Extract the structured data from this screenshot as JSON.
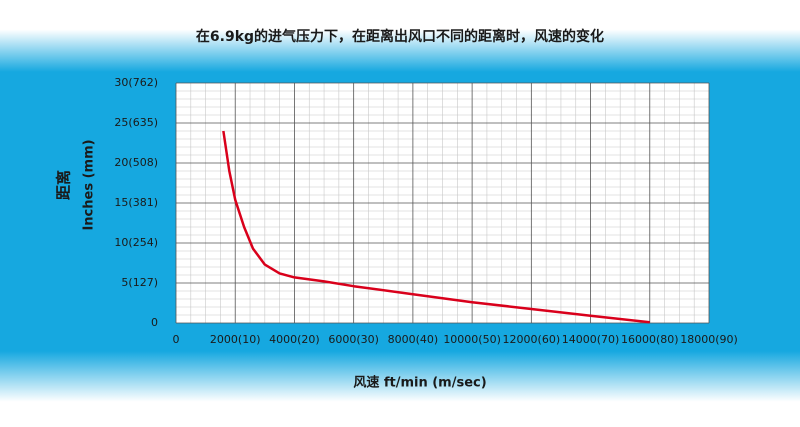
{
  "chart_data": {
    "type": "line",
    "title": "在6.9kg的进气压力下，在距离出风口不同的距离时，风速的变化",
    "y_label_cn": "距离",
    "y_label": "Inches (mm)",
    "x_label": "风速 ft/min (m/sec)",
    "x": [
      1600,
      1800,
      2000,
      2300,
      2600,
      3000,
      3500,
      4000,
      5000,
      6000,
      8000,
      10000,
      12000,
      14000,
      16000
    ],
    "series": [
      {
        "name": "风速",
        "color": "#d9001b",
        "values": [
          24,
          19,
          15.4,
          12,
          9.3,
          7.3,
          6.2,
          5.7,
          5.2,
          4.6,
          3.6,
          2.6,
          1.75,
          0.9,
          0.1
        ]
      }
    ],
    "xlim": [
      0,
      18000
    ],
    "xticks": [
      0,
      {
        "value": 2000,
        "label": "2000(10)"
      },
      {
        "value": 4000,
        "label": "4000(20)"
      },
      {
        "value": 6000,
        "label": "6000(30)"
      },
      {
        "value": 8000,
        "label": "8000(40)"
      },
      {
        "value": 10000,
        "label": "10000(50)"
      },
      {
        "value": 12000,
        "label": "12000(60)"
      },
      {
        "value": 14000,
        "label": "14000(70)"
      },
      {
        "value": 16000,
        "label": "16000(80)"
      },
      {
        "value": 18000,
        "label": "18000(90)"
      }
    ],
    "ylim": [
      0,
      30
    ],
    "yticks": [
      0,
      {
        "value": 5,
        "label": "5(127)"
      },
      {
        "value": 10,
        "label": "10(254)"
      },
      {
        "value": 15,
        "label": "15(381)"
      },
      {
        "value": 20,
        "label": "20(508)"
      },
      {
        "value": 25,
        "label": "25(635)"
      },
      {
        "value": 30,
        "label": "30(762)"
      }
    ],
    "grid": true
  }
}
